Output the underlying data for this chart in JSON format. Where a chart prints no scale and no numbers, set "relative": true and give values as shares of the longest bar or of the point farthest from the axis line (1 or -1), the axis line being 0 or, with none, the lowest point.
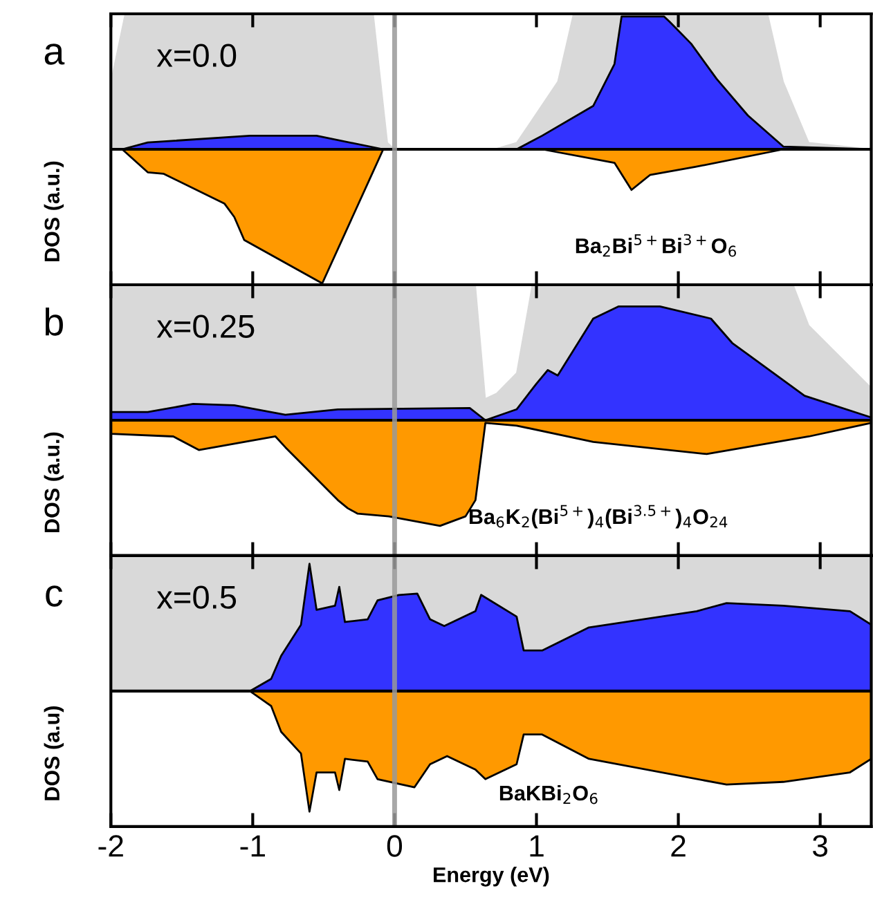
{
  "chart_data": [
    {
      "type": "area",
      "title": "a",
      "ylabel": "DOS (a.u.)",
      "relative": true,
      "xlim": [
        -2,
        3.36
      ],
      "xticks": [
        -2,
        -1,
        0,
        1,
        2,
        3
      ],
      "tick_labels": false,
      "grid": false,
      "legend": false,
      "annotations": [
        "x=0.0",
        "Ba$_{2}$Bi$^{5+}$Bi$^{3+}$O$_{6}$"
      ],
      "ref_lines": [
        {
          "axis": "x",
          "value": 0,
          "color": "#999999"
        }
      ],
      "series": [
        {
          "color": "#d9d9d9",
          "x": [
            -2,
            -1.9,
            -0.15,
            -0.05,
            0,
            0.7,
            0.86,
            1.15,
            1.26,
            2.63,
            2.74,
            2.92,
            3.36
          ],
          "values": [
            0.5,
            1.0,
            1.0,
            0.05,
            0,
            0,
            0.05,
            0.5,
            1.0,
            1.0,
            0.5,
            0.05,
            0
          ]
        },
        {
          "color": "#3333ff",
          "x": [
            -2,
            -1.92,
            -1.74,
            -1.02,
            -0.55,
            -0.08,
            0.86,
            1.04,
            1.4,
            1.55,
            1.6,
            1.9,
            1.94,
            2.09,
            2.27,
            2.49,
            2.74,
            3.36
          ],
          "values": [
            0,
            0,
            0.05,
            0.1,
            0.1,
            0,
            0,
            0.1,
            0.32,
            0.63,
            0.98,
            0.98,
            0.94,
            0.78,
            0.52,
            0.25,
            0.02,
            0
          ]
        },
        {
          "color": "#ff9900",
          "x": [
            -2,
            -1.92,
            -1.74,
            -1.63,
            -1.2,
            -1.13,
            -1.06,
            -0.51,
            -0.08,
            1.04,
            1.55,
            1.67,
            1.8,
            2.12,
            2.74,
            3.36
          ],
          "values": [
            0,
            0,
            -0.17,
            -0.18,
            -0.4,
            -0.5,
            -0.67,
            -0.99,
            0,
            0,
            -0.1,
            -0.3,
            -0.19,
            -0.13,
            0,
            0
          ]
        }
      ]
    },
    {
      "type": "area",
      "title": "b",
      "ylabel": "DOS (a.u.)",
      "relative": true,
      "xlim": [
        -2,
        3.36
      ],
      "xticks": [
        -2,
        -1,
        0,
        1,
        2,
        3
      ],
      "tick_labels": false,
      "grid": false,
      "legend": false,
      "annotations": [
        "x=0.25",
        "Ba$_{6}$K$_{2}$(Bi$^{5+}$)$_{4}$(Bi$^{3.5+}$)$_{4}$O$_{24}$"
      ],
      "ref_lines": [
        {
          "axis": "x",
          "value": 0,
          "color": "#999999"
        }
      ],
      "series": [
        {
          "color": "#d9d9d9",
          "x": [
            -2,
            0.57,
            0.64,
            0.72,
            0.86,
            0.97,
            2.81,
            2.92,
            3.36
          ],
          "values": [
            1.0,
            1.0,
            0.16,
            0.2,
            0.35,
            1.0,
            1.0,
            0.7,
            0.24
          ]
        },
        {
          "color": "#3333ff",
          "x": [
            -2,
            -1.74,
            -1.42,
            -1.13,
            -0.77,
            -0.4,
            0.53,
            0.64,
            0.86,
            1.0,
            1.08,
            1.15,
            1.4,
            1.58,
            1.87,
            2.23,
            2.38,
            2.89,
            3.36
          ],
          "values": [
            0.06,
            0.06,
            0.12,
            0.11,
            0.04,
            0.08,
            0.09,
            0,
            0.08,
            0.27,
            0.37,
            0.33,
            0.75,
            0.84,
            0.84,
            0.75,
            0.57,
            0.18,
            0.02
          ]
        },
        {
          "color": "#ff9900",
          "x": [
            -2,
            -1.56,
            -1.38,
            -0.84,
            -0.77,
            -0.4,
            -0.33,
            -0.26,
            -0.04,
            0.32,
            0.5,
            0.57,
            0.64,
            0.86,
            1.4,
            2.2,
            2.92,
            3.36
          ],
          "values": [
            -0.1,
            -0.12,
            -0.22,
            -0.12,
            -0.2,
            -0.59,
            -0.65,
            -0.69,
            -0.71,
            -0.78,
            -0.71,
            -0.59,
            -0.02,
            -0.04,
            -0.16,
            -0.25,
            -0.12,
            -0.02
          ]
        }
      ]
    },
    {
      "type": "area",
      "title": "c",
      "ylabel": "DOS (a.u)",
      "xlabel": "Energy (eV)",
      "relative": true,
      "xlim": [
        -2,
        3.36
      ],
      "xticks": [
        -2,
        -1,
        0,
        1,
        2,
        3
      ],
      "tick_labels": "x",
      "grid": false,
      "legend": false,
      "annotations": [
        "x=0.5",
        "BaKBi$_{2}$O$_{6}$"
      ],
      "ref_lines": [
        {
          "axis": "x",
          "value": 0,
          "color": "#999999"
        }
      ],
      "series": [
        {
          "color": "#d9d9d9",
          "x": [
            -2,
            3.36
          ],
          "values": [
            1.0,
            1.0
          ]
        },
        {
          "color": "#3333ff",
          "x": [
            -2,
            -1.02,
            -0.87,
            -0.8,
            -0.66,
            -0.6,
            -0.55,
            -0.42,
            -0.39,
            -0.35,
            -0.19,
            -0.12,
            0.03,
            0.16,
            0.25,
            0.35,
            0.57,
            0.61,
            0.86,
            0.91,
            1.04,
            1.37,
            2.13,
            2.34,
            2.74,
            3.21,
            3.36
          ],
          "values": [
            0,
            0,
            0.09,
            0.26,
            0.49,
            0.94,
            0.6,
            0.63,
            0.77,
            0.51,
            0.53,
            0.67,
            0.71,
            0.72,
            0.53,
            0.48,
            0.59,
            0.71,
            0.55,
            0.3,
            0.3,
            0.47,
            0.59,
            0.65,
            0.63,
            0.59,
            0.49
          ]
        },
        {
          "color": "#ff9900",
          "x": [
            -2,
            -1.02,
            -0.87,
            -0.8,
            -0.66,
            -0.6,
            -0.55,
            -0.42,
            -0.39,
            -0.35,
            -0.19,
            -0.12,
            0.14,
            0.25,
            0.37,
            0.57,
            0.64,
            0.86,
            0.91,
            1.04,
            1.37,
            2.34,
            2.74,
            3.21,
            3.36
          ],
          "values": [
            0,
            0,
            -0.11,
            -0.3,
            -0.46,
            -0.89,
            -0.6,
            -0.6,
            -0.73,
            -0.5,
            -0.52,
            -0.65,
            -0.71,
            -0.54,
            -0.48,
            -0.58,
            -0.65,
            -0.54,
            -0.32,
            -0.32,
            -0.5,
            -0.69,
            -0.67,
            -0.6,
            -0.5
          ]
        }
      ]
    }
  ]
}
